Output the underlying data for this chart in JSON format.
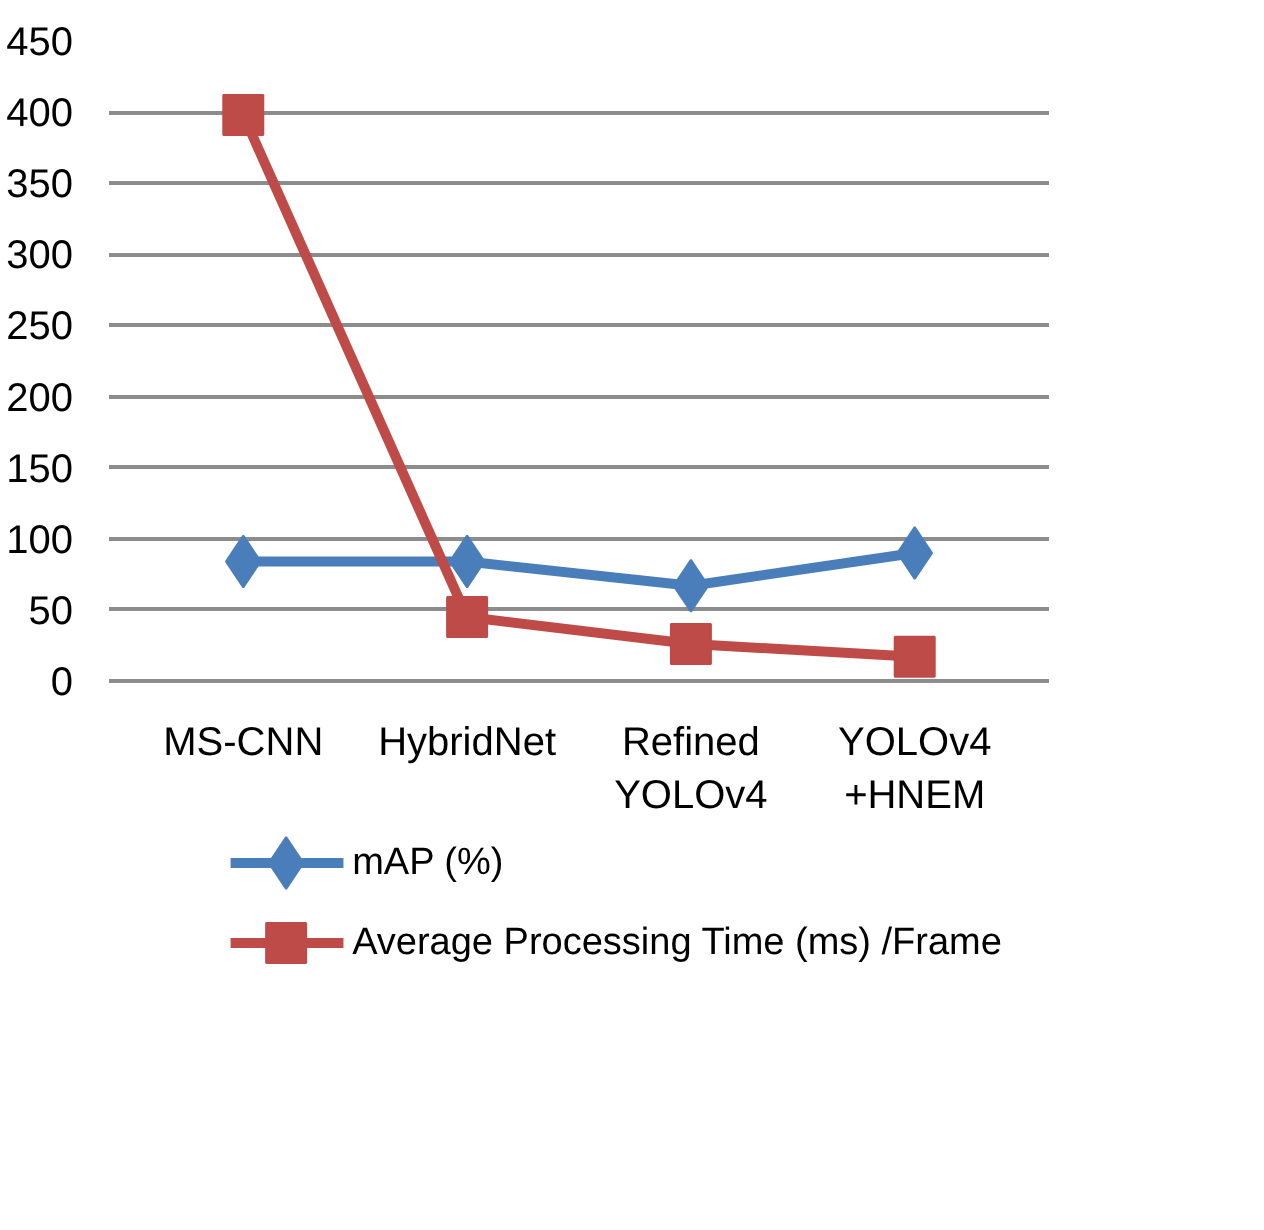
{
  "chart_data": {
    "type": "line",
    "categories": [
      "MS-CNN",
      "HybridNet",
      "Refined\nYOLOv4",
      "YOLOv4\n+HNEM"
    ],
    "series": [
      {
        "name": "mAP (%)",
        "color": "#4a7ebb",
        "values": [
          84,
          84,
          67,
          90
        ],
        "marker": "diamond"
      },
      {
        "name": "Average Processing Time (ms) /Frame",
        "color": "#be4b48",
        "values": [
          398,
          45,
          26,
          17
        ],
        "marker": "square"
      }
    ],
    "ylim": [
      0,
      450
    ],
    "yticks": [
      0,
      50,
      100,
      150,
      200,
      250,
      300,
      350,
      400,
      450
    ],
    "grid": "y",
    "legend": "bottom"
  }
}
